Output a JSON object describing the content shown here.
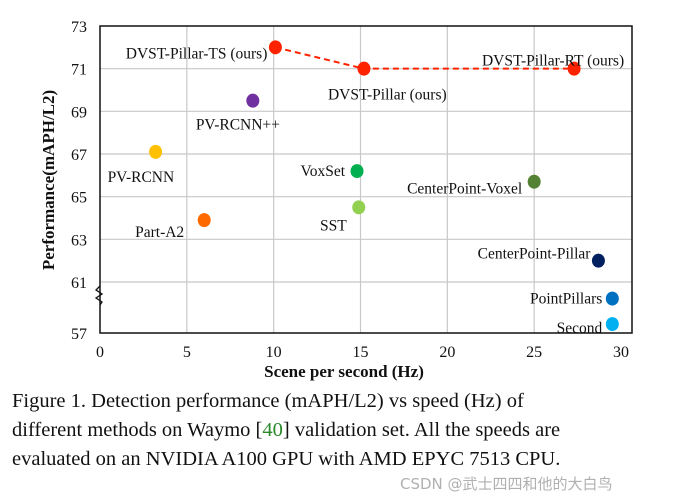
{
  "chart_data": {
    "type": "scatter",
    "xlabel": "Scene per second (Hz)",
    "ylabel": "Performance(mAPH/L2)",
    "xlim": [
      0,
      30
    ],
    "ylim": [
      57,
      73
    ],
    "y_axis_break": [
      57,
      61
    ],
    "xticks": [
      "0",
      "5",
      "10",
      "15",
      "20",
      "25",
      "30"
    ],
    "yticks": [
      "57",
      "61",
      "63",
      "65",
      "67",
      "69",
      "71",
      "73"
    ],
    "grid": true,
    "points": [
      {
        "label": "DVST-Pillar-TS (ours)",
        "x": 10.1,
        "y": 72.0,
        "color": "#ff2200"
      },
      {
        "label": "DVST-Pillar (ours)",
        "x": 15.2,
        "y": 71.0,
        "color": "#ff2200"
      },
      {
        "label": "DVST-Pillar-RT (ours)",
        "x": 27.3,
        "y": 71.0,
        "color": "#ff2200"
      },
      {
        "label": "PV-RCNN++",
        "x": 8.8,
        "y": 69.5,
        "color": "#7030a0"
      },
      {
        "label": "PV-RCNN",
        "x": 3.2,
        "y": 67.1,
        "color": "#ffc000"
      },
      {
        "label": "VoxSet",
        "x": 14.8,
        "y": 66.2,
        "color": "#00b050"
      },
      {
        "label": "CenterPoint-Voxel",
        "x": 25.0,
        "y": 65.7,
        "color": "#548235"
      },
      {
        "label": "SST",
        "x": 14.9,
        "y": 64.5,
        "color": "#92d050"
      },
      {
        "label": "Part-A2",
        "x": 6.0,
        "y": 63.9,
        "color": "#ff6a00"
      },
      {
        "label": "CenterPoint-Pillar",
        "x": 28.7,
        "y": 62.0,
        "color": "#002060"
      },
      {
        "label": "PointPillars",
        "x": 29.5,
        "y": 59.7,
        "color": "#0070c0"
      },
      {
        "label": "Second",
        "x": 29.5,
        "y": 57.7,
        "color": "#00b0f0"
      }
    ],
    "dashed_line": {
      "connects": [
        "DVST-Pillar-TS (ours)",
        "DVST-Pillar (ours)",
        "DVST-Pillar-RT (ours)"
      ],
      "color": "#ff2200"
    }
  },
  "caption": {
    "line1": "Figure 1.  Detection performance (mAPH/L2) vs speed (Hz) of",
    "line2a": "different methods on Waymo [",
    "ref": "40",
    "line2b": "] validation set. All the speeds are",
    "line3": "evaluated on an NVIDIA A100 GPU with AMD EPYC 7513 CPU."
  },
  "watermark": "CSDN @武士四四和他的大白鸟"
}
